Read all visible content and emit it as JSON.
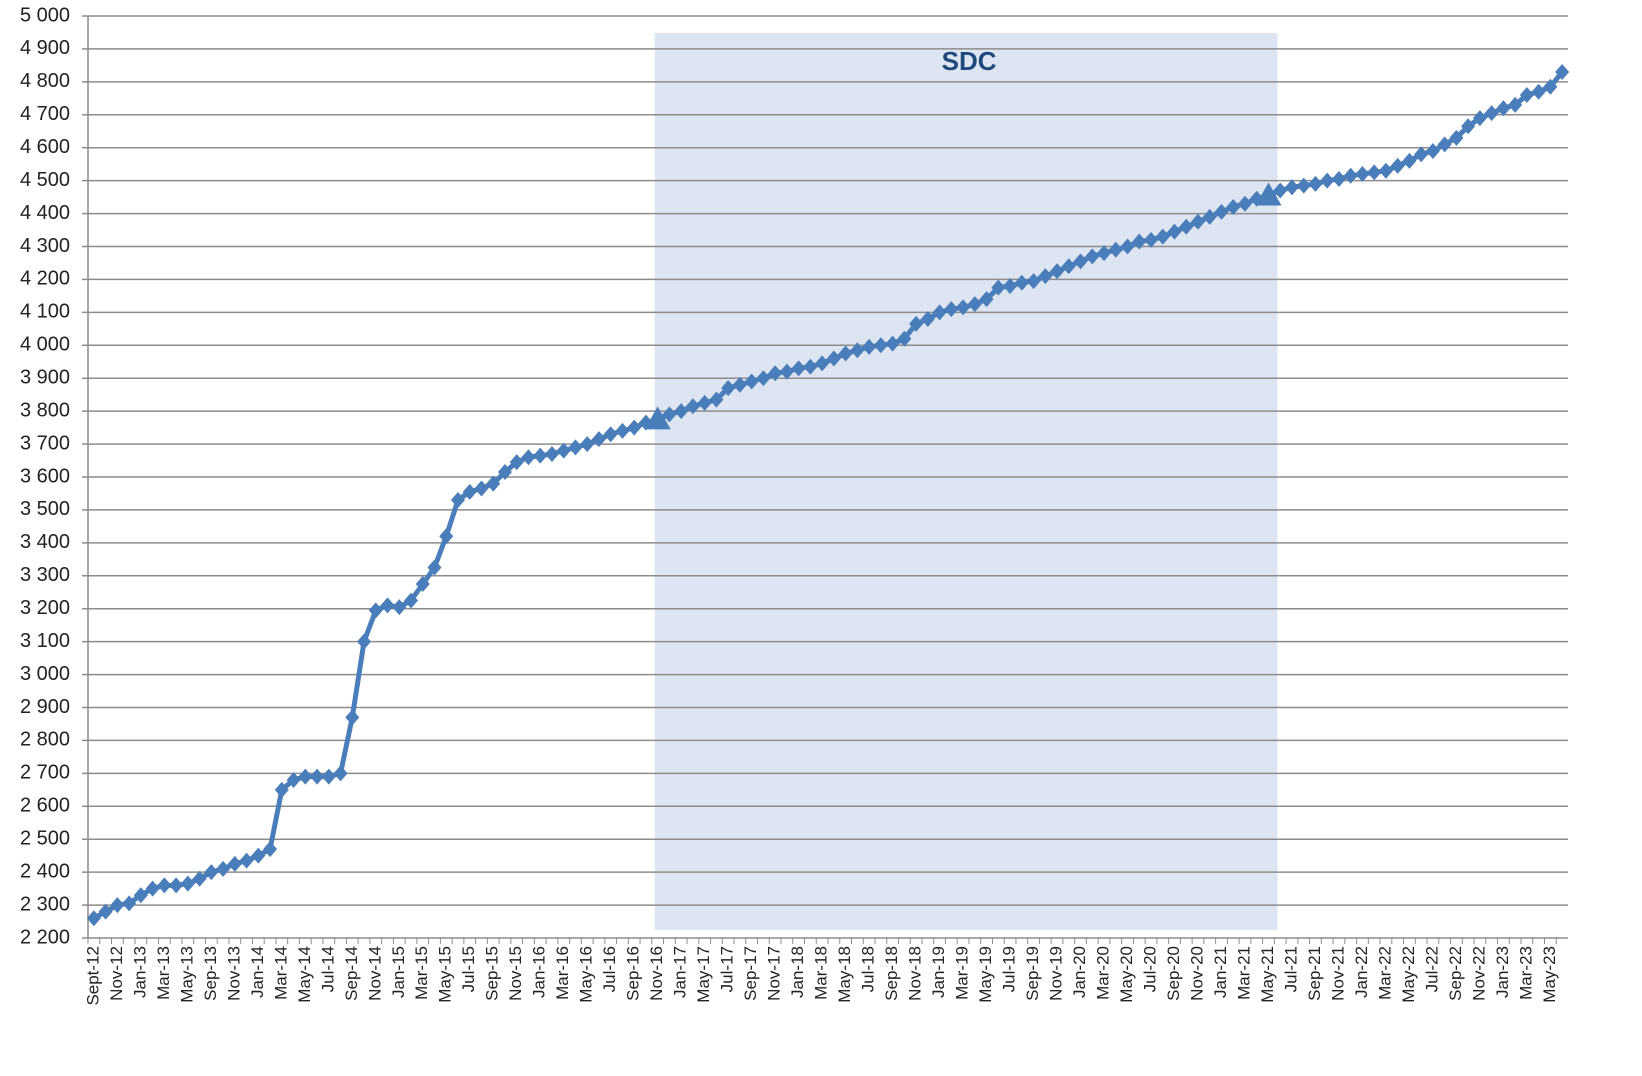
{
  "chart_data": {
    "type": "line",
    "categories": [
      "Sept-12",
      null,
      "Nov-12",
      null,
      "Jan-13",
      null,
      "Mar-13",
      null,
      "May-13",
      null,
      "Sep-13",
      null,
      "Nov-13",
      null,
      "Jan-14",
      null,
      "Mar-14",
      null,
      "May-14",
      null,
      "Jul-14",
      null,
      "Sep-14",
      null,
      "Nov-14",
      null,
      "Jan-15",
      null,
      "Mar-15",
      null,
      "May-15",
      null,
      "Jul-15",
      null,
      "Sep-15",
      null,
      "Nov-15",
      null,
      "Jan-16",
      null,
      "Mar-16",
      null,
      "May-16",
      null,
      "Jul-16",
      null,
      "Sep-16",
      null,
      "Nov-16",
      null,
      "Jan-17",
      null,
      "May-17",
      null,
      "Jul-17",
      null,
      "Sep-17",
      null,
      "Nov-17",
      null,
      "Jan-18",
      null,
      "Mar-18",
      null,
      "May-18",
      null,
      "Jul-18",
      null,
      "Sep-18",
      null,
      "Nov-18",
      null,
      "Jan-19",
      null,
      "Mar-19",
      null,
      "May-19",
      null,
      "Jul-19",
      null,
      "Sep-19",
      null,
      "Nov-19",
      null,
      "Jan-20",
      null,
      "Mar-20",
      null,
      "May-20",
      null,
      "Jul-20",
      null,
      "Sep-20",
      null,
      "Nov-20",
      null,
      "Jan-21",
      null,
      "Mar-21",
      null,
      "May-21",
      null,
      "Jul-21",
      null,
      "Sep-21",
      null,
      "Nov-21",
      null,
      "Jan-22",
      null,
      "Mar-22",
      null,
      "May-22",
      null,
      "Jul-22",
      null,
      "Sep-22",
      null,
      "Nov-22",
      null,
      "Jan-23",
      null,
      "Mar-23",
      null,
      "May-23",
      null
    ],
    "values": [
      2260,
      2280,
      2300,
      2305,
      2330,
      2350,
      2360,
      2360,
      2365,
      2380,
      2400,
      2410,
      2425,
      2435,
      2450,
      2470,
      2650,
      2680,
      2690,
      2690,
      2690,
      2700,
      2870,
      3100,
      3195,
      3210,
      3205,
      3225,
      3275,
      3325,
      3420,
      3530,
      3555,
      3565,
      3580,
      3615,
      3645,
      3660,
      3665,
      3670,
      3680,
      3690,
      3700,
      3715,
      3730,
      3740,
      3750,
      3765,
      3775,
      3790,
      3800,
      3815,
      3825,
      3835,
      3870,
      3880,
      3890,
      3900,
      3915,
      3920,
      3930,
      3935,
      3945,
      3960,
      3975,
      3985,
      3995,
      4000,
      4005,
      4020,
      4065,
      4080,
      4100,
      4110,
      4115,
      4125,
      4140,
      4175,
      4180,
      4190,
      4195,
      4210,
      4225,
      4240,
      4255,
      4270,
      4280,
      4290,
      4300,
      4315,
      4320,
      4330,
      4345,
      4360,
      4375,
      4390,
      4405,
      4420,
      4430,
      4445,
      4455,
      4470,
      4480,
      4485,
      4490,
      4500,
      4505,
      4515,
      4520,
      4525,
      4530,
      4545,
      4560,
      4580,
      4590,
      4610,
      4630,
      4665,
      4690,
      4705,
      4720,
      4730,
      4760,
      4770,
      4785,
      4830
    ],
    "color": "#4a7ebb",
    "ylim": [
      2200,
      5000
    ],
    "yticks": [
      {
        "value": 2200,
        "label": "2 200"
      },
      {
        "value": 2300,
        "label": "2 300"
      },
      {
        "value": 2400,
        "label": "2 400"
      },
      {
        "value": 2500,
        "label": "2 500"
      },
      {
        "value": 2600,
        "label": "2 600"
      },
      {
        "value": 2700,
        "label": "2 700"
      },
      {
        "value": 2800,
        "label": "2 800"
      },
      {
        "value": 2900,
        "label": "2 900"
      },
      {
        "value": 3000,
        "label": "3 000"
      },
      {
        "value": 3100,
        "label": "3 100"
      },
      {
        "value": 3200,
        "label": "3 200"
      },
      {
        "value": 3300,
        "label": "3 300"
      },
      {
        "value": 3400,
        "label": "3 400"
      },
      {
        "value": 3500,
        "label": "3 500"
      },
      {
        "value": 3600,
        "label": "3 600"
      },
      {
        "value": 3700,
        "label": "3 700"
      },
      {
        "value": 3800,
        "label": "3 800"
      },
      {
        "value": 3900,
        "label": "3 900"
      },
      {
        "value": 4000,
        "label": "4 000"
      },
      {
        "value": 4100,
        "label": "4 100"
      },
      {
        "value": 4200,
        "label": "4 200"
      },
      {
        "value": 4300,
        "label": "4 300"
      },
      {
        "value": 4400,
        "label": "4 400"
      },
      {
        "value": 4500,
        "label": "4 500"
      },
      {
        "value": 4600,
        "label": "4 600"
      },
      {
        "value": 4700,
        "label": "4 700"
      },
      {
        "value": 4800,
        "label": "4 800"
      },
      {
        "value": 4900,
        "label": "4 900"
      },
      {
        "value": 5000,
        "label": "5 000"
      }
    ],
    "grid": true,
    "annotation": {
      "label": "SDC",
      "from": "Nov-16",
      "to": "May-21",
      "color": "#dde5f2"
    }
  }
}
